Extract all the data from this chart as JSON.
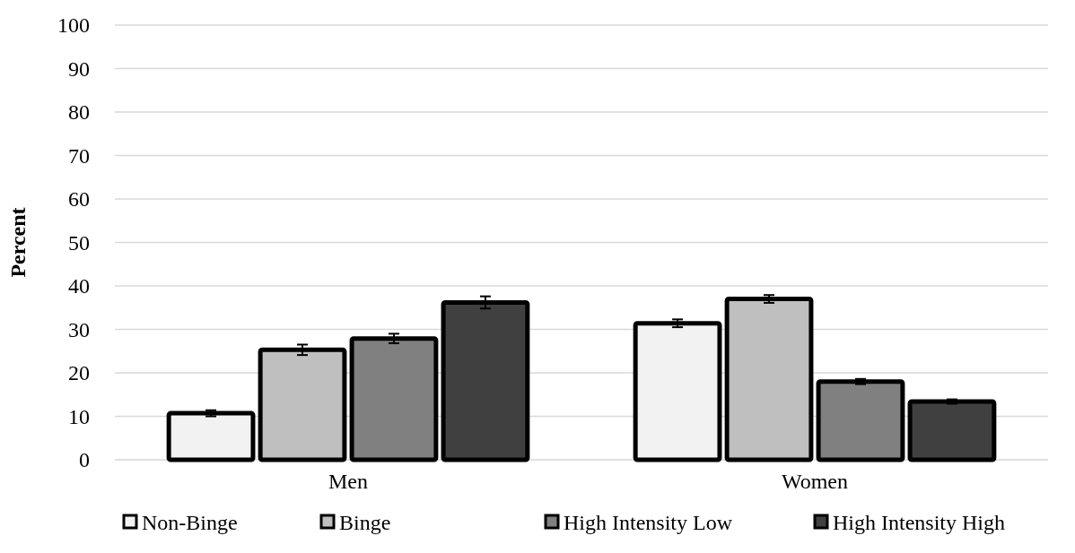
{
  "chart_data": {
    "type": "bar",
    "ylabel": "Percent",
    "categories": [
      "Men",
      "Women"
    ],
    "series": [
      {
        "name": "Non-Binge",
        "color": "#f2f2f2",
        "values": [
          10.7,
          31.4
        ],
        "errors": [
          0.7,
          0.9
        ]
      },
      {
        "name": "Binge",
        "color": "#bfbfbf",
        "values": [
          25.3,
          37.0
        ],
        "errors": [
          1.2,
          0.9
        ]
      },
      {
        "name": "High Intensity Low",
        "color": "#808080",
        "values": [
          27.9,
          18.0
        ],
        "errors": [
          1.1,
          0.6
        ]
      },
      {
        "name": "High Intensity High",
        "color": "#404040",
        "values": [
          36.2,
          13.4
        ],
        "errors": [
          1.4,
          0.5
        ]
      }
    ],
    "ylim": [
      0,
      100
    ],
    "yticks": [
      0,
      10,
      20,
      30,
      40,
      50,
      60,
      70,
      80,
      90,
      100
    ],
    "grid": "y",
    "legend": "bottom"
  }
}
